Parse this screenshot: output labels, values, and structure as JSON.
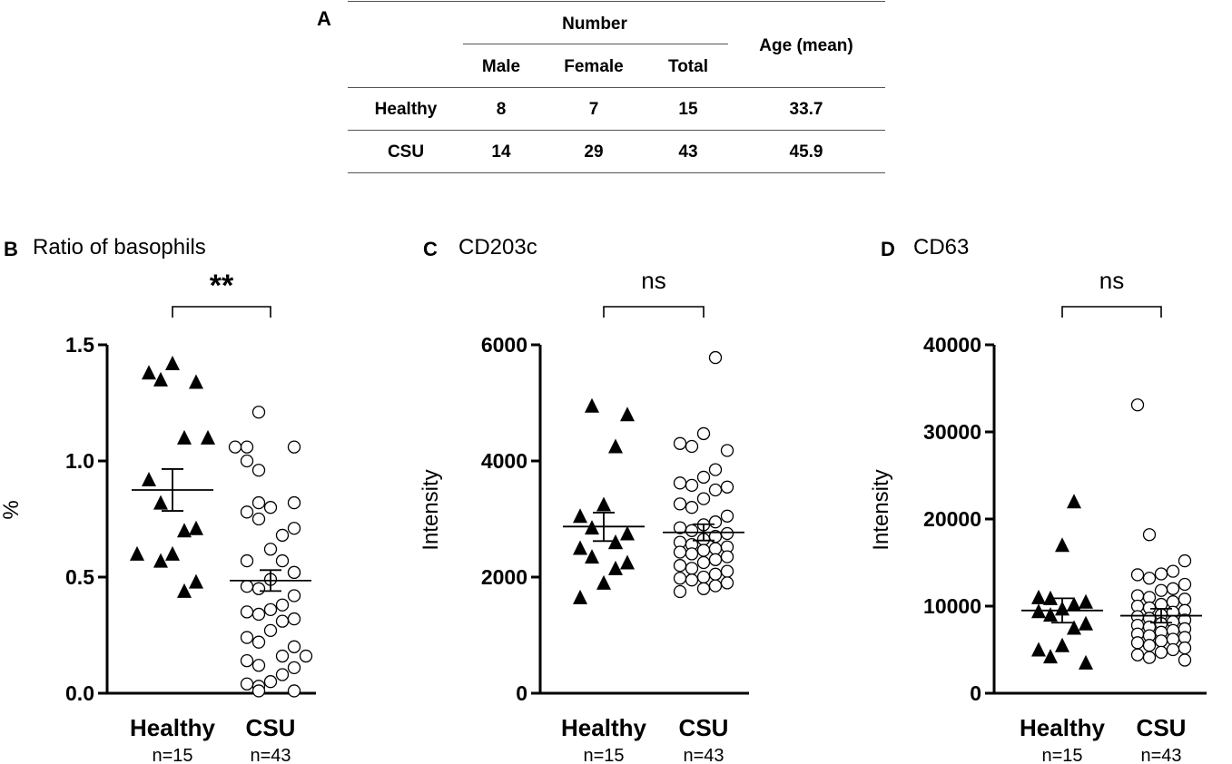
{
  "panel_a": {
    "letter": "A",
    "header_group": "Number",
    "header_age": "Age (mean)",
    "sub_headers": [
      "Male",
      "Female",
      "Total"
    ],
    "rows": [
      {
        "group": "Healthy",
        "male": "8",
        "female": "7",
        "total": "15",
        "age": "33.7"
      },
      {
        "group": "CSU",
        "male": "14",
        "female": "29",
        "total": "43",
        "age": "45.9"
      }
    ]
  },
  "chart_data": [
    {
      "type": "scatter",
      "letter": "B",
      "title": "Ratio of basophils",
      "ylabel": "%",
      "ylim": [
        0,
        1.5
      ],
      "yticks": [
        0.0,
        0.5,
        1.0,
        1.5
      ],
      "ytick_labels": [
        "0.0",
        "0.5",
        "1.0",
        "1.5"
      ],
      "significance": "**",
      "categories": [
        "Healthy",
        "CSU"
      ],
      "n_labels": [
        "n=15",
        "n=43"
      ],
      "series": [
        {
          "name": "Healthy",
          "marker": "triangle",
          "mean": 0.875,
          "sem_low": 0.785,
          "sem_high": 0.965,
          "values": [
            1.42,
            1.38,
            1.35,
            1.34,
            1.1,
            1.1,
            0.92,
            0.82,
            0.71,
            0.7,
            0.6,
            0.6,
            0.57,
            0.48,
            0.44
          ]
        },
        {
          "name": "CSU",
          "marker": "circle",
          "mean": 0.485,
          "sem_low": 0.44,
          "sem_high": 0.53,
          "values": [
            1.21,
            1.06,
            1.06,
            1.06,
            1.0,
            0.96,
            0.82,
            0.82,
            0.8,
            0.78,
            0.75,
            0.71,
            0.68,
            0.62,
            0.57,
            0.57,
            0.52,
            0.52,
            0.49,
            0.46,
            0.45,
            0.42,
            0.38,
            0.36,
            0.35,
            0.34,
            0.32,
            0.31,
            0.27,
            0.24,
            0.22,
            0.2,
            0.16,
            0.16,
            0.14,
            0.12,
            0.11,
            0.08,
            0.05,
            0.04,
            0.03,
            0.01,
            0.01
          ]
        }
      ]
    },
    {
      "type": "scatter",
      "letter": "C",
      "title": "CD203c",
      "ylabel": "Intensity",
      "ylim": [
        0,
        6000
      ],
      "yticks": [
        0,
        2000,
        4000,
        6000
      ],
      "ytick_labels": [
        "0",
        "2000",
        "4000",
        "6000"
      ],
      "significance": "ns",
      "categories": [
        "Healthy",
        "CSU"
      ],
      "n_labels": [
        "n=15",
        "n=43"
      ],
      "series": [
        {
          "name": "Healthy",
          "marker": "triangle",
          "mean": 2870,
          "sem_low": 2620,
          "sem_high": 3110,
          "values": [
            4950,
            4800,
            4250,
            3250,
            3050,
            2850,
            2750,
            2600,
            2600,
            2500,
            2350,
            2250,
            2150,
            1900,
            1650
          ]
        },
        {
          "name": "CSU",
          "marker": "circle",
          "mean": 2770,
          "sem_low": 2630,
          "sem_high": 2910,
          "values": [
            5780,
            4470,
            4300,
            4250,
            4180,
            3850,
            3720,
            3620,
            3580,
            3550,
            3500,
            3350,
            3260,
            3200,
            3050,
            2950,
            2900,
            2850,
            2800,
            2750,
            2700,
            2650,
            2600,
            2560,
            2520,
            2490,
            2460,
            2430,
            2400,
            2350,
            2300,
            2250,
            2200,
            2150,
            2100,
            2050,
            2000,
            1980,
            1950,
            1900,
            1850,
            1800,
            1750
          ]
        }
      ]
    },
    {
      "type": "scatter",
      "letter": "D",
      "title": "CD63",
      "ylabel": "Intensity",
      "ylim": [
        0,
        40000
      ],
      "yticks": [
        0,
        10000,
        20000,
        30000,
        40000
      ],
      "ytick_labels": [
        "0",
        "10000",
        "20000",
        "30000",
        "40000"
      ],
      "significance": "ns",
      "categories": [
        "Healthy",
        "CSU"
      ],
      "n_labels": [
        "n=15",
        "n=43"
      ],
      "series": [
        {
          "name": "Healthy",
          "marker": "triangle",
          "mean": 9500,
          "sem_low": 8100,
          "sem_high": 10900,
          "values": [
            22000,
            17000,
            11000,
            10900,
            10500,
            10200,
            9700,
            9400,
            9000,
            8000,
            7500,
            5500,
            5000,
            4200,
            3500
          ]
        },
        {
          "name": "CSU",
          "marker": "circle",
          "mean": 8900,
          "sem_low": 8100,
          "sem_high": 9700,
          "values": [
            33100,
            18200,
            15200,
            14000,
            13700,
            13600,
            13200,
            12500,
            12000,
            11800,
            11200,
            11000,
            10800,
            10500,
            10200,
            10000,
            9800,
            9500,
            9300,
            9000,
            8800,
            8600,
            8400,
            8200,
            8000,
            7800,
            7600,
            7400,
            7200,
            7000,
            6800,
            6600,
            6400,
            6200,
            6000,
            5800,
            5500,
            5200,
            5000,
            4700,
            4400,
            4100,
            3800
          ]
        }
      ]
    }
  ]
}
